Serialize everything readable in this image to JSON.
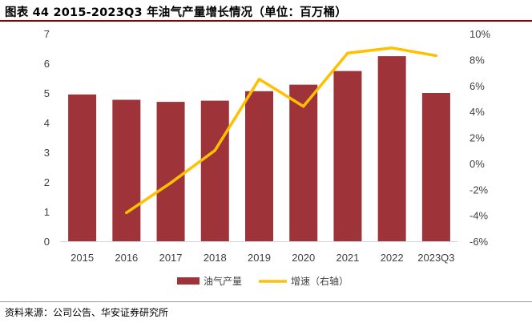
{
  "header": {
    "title": "图表 44  2015-2023Q3 年油气产量增长情况（单位：百万桶）"
  },
  "footer": {
    "source": "资料来源：公司公告、华安证券研究所"
  },
  "chart_data": {
    "type": "bar+line",
    "categories": [
      "2015",
      "2016",
      "2017",
      "2018",
      "2019",
      "2020",
      "2021",
      "2022",
      "2023Q3"
    ],
    "series": [
      {
        "name": "油气产量",
        "type": "bar",
        "axis": "left",
        "color": "#9e3339",
        "values": [
          4.95,
          4.77,
          4.7,
          4.74,
          5.06,
          5.28,
          5.74,
          6.24,
          5.0
        ]
      },
      {
        "name": "增速（右轴）",
        "type": "line",
        "axis": "right",
        "color": "#ffc000",
        "values": [
          null,
          -3.8,
          -1.5,
          1.0,
          6.5,
          4.4,
          8.5,
          8.9,
          8.3
        ]
      }
    ],
    "left_axis": {
      "min": 0,
      "max": 7,
      "step": 1,
      "tick_labels": [
        "0",
        "1",
        "2",
        "3",
        "4",
        "5",
        "6",
        "7"
      ]
    },
    "right_axis": {
      "min": -6,
      "max": 10,
      "step": 2,
      "unit": "%",
      "tick_labels": [
        "-6%",
        "-4%",
        "-2%",
        "0%",
        "2%",
        "4%",
        "6%",
        "8%",
        "10%"
      ]
    },
    "legend": {
      "position": "bottom",
      "entries": [
        "油气产量",
        "增速（右轴）"
      ]
    },
    "grid": false
  }
}
